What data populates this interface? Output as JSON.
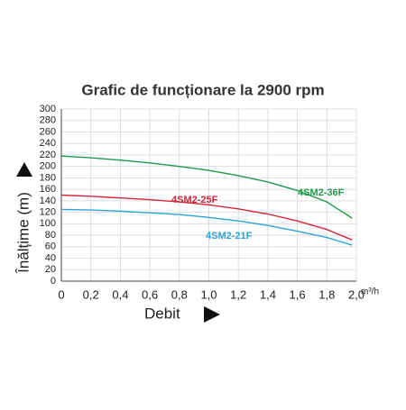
{
  "chart_data": {
    "type": "line",
    "title": "Grafic de funcționare la 2900 rpm",
    "y_label": "Înălțime (m)",
    "x_label": "Debit",
    "x_unit": "m³/h",
    "x": [
      0,
      0.2,
      0.4,
      0.6,
      0.8,
      1.0,
      1.2,
      1.4,
      1.6,
      1.8,
      1.97
    ],
    "series": [
      {
        "name": "4SM2-36F",
        "color": "#1e9a4a",
        "values": [
          218,
          215,
          211,
          206,
          200,
          193,
          184,
          173,
          158,
          138,
          110
        ]
      },
      {
        "name": "4SM2-25F",
        "color": "#d0263a",
        "values": [
          150,
          148,
          145,
          142,
          138,
          133,
          126,
          117,
          105,
          90,
          72
        ]
      },
      {
        "name": "4SM2-21F",
        "color": "#2aa4d8",
        "values": [
          125,
          124,
          122,
          119,
          116,
          111,
          105,
          97,
          87,
          76,
          63
        ]
      }
    ],
    "xlim": [
      0,
      2.0
    ],
    "ylim": [
      0,
      300
    ],
    "xticks": [
      0,
      {
        "value": 0.2,
        "label": "0,2"
      },
      {
        "value": 0.4,
        "label": "0,4"
      },
      {
        "value": 0.6,
        "label": "0,6"
      },
      {
        "value": 0.8,
        "label": "0,8"
      },
      {
        "value": 1.0,
        "label": "1,0"
      },
      {
        "value": 1.2,
        "label": "1,2"
      },
      {
        "value": 1.4,
        "label": "1,4"
      },
      {
        "value": 1.6,
        "label": "1,6"
      },
      {
        "value": 1.8,
        "label": "1,8"
      },
      {
        "value": 2.0,
        "label": "2,0"
      }
    ],
    "yticks": [
      0,
      20,
      40,
      60,
      80,
      100,
      120,
      140,
      160,
      180,
      200,
      220,
      240,
      260,
      280,
      300
    ],
    "grid": true
  }
}
